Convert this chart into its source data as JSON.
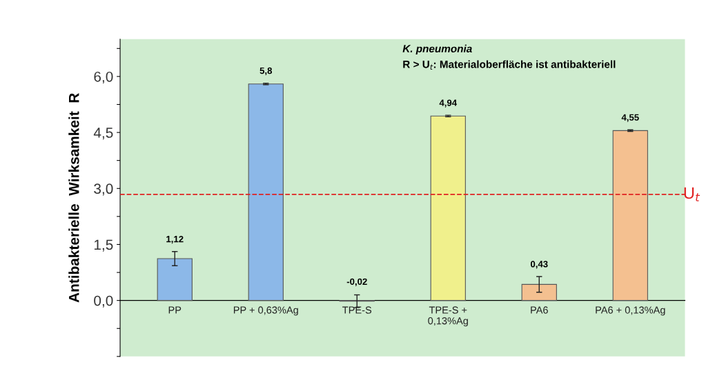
{
  "chart_data": {
    "type": "bar",
    "ylabel": "Antibakterielle  Wirksamkeit  R",
    "categories": [
      "PP",
      "PP + 0,63%Ag",
      "TPE-S",
      "TPE-S +\n0,13%Ag",
      "PA6",
      "PA6 + 0,13%Ag"
    ],
    "values": [
      1.12,
      5.8,
      -0.02,
      4.94,
      0.43,
      4.55
    ],
    "value_labels": [
      "1,12",
      "5,8",
      "-0,02",
      "4,94",
      "0,43",
      "4,55"
    ],
    "errors": [
      0.19,
      0.02,
      0.17,
      0.02,
      0.21,
      0.02
    ],
    "colors": [
      "#8cb8e8",
      "#8cb8e8",
      "#f0f08c",
      "#f0f08c",
      "#f4c090",
      "#f4c090"
    ],
    "ylim": [
      -1.5,
      7.0
    ],
    "yticks": [
      {
        "value": -1.5,
        "label": null
      },
      {
        "value": -0.75,
        "label": null
      },
      {
        "value": 0,
        "label": "0,0"
      },
      {
        "value": 0.75,
        "label": null
      },
      {
        "value": 1.5,
        "label": "1,5"
      },
      {
        "value": 2.25,
        "label": null
      },
      {
        "value": 3.0,
        "label": "3,0"
      },
      {
        "value": 3.75,
        "label": null
      },
      {
        "value": 4.5,
        "label": "4,5"
      },
      {
        "value": 5.25,
        "label": null
      },
      {
        "value": 6.0,
        "label": "6,0"
      },
      {
        "value": 6.75,
        "label": null
      }
    ],
    "ref_lines": [
      {
        "axis": "y",
        "value": 2.84,
        "label": "U$_{t}$",
        "color": "#e02020",
        "line_style": "dashed"
      }
    ],
    "annotations": [
      "K. pneumonia",
      "R > U$_{t}$: Materialoberfläche ist antibakteriell"
    ],
    "grid": false,
    "legend": false
  }
}
